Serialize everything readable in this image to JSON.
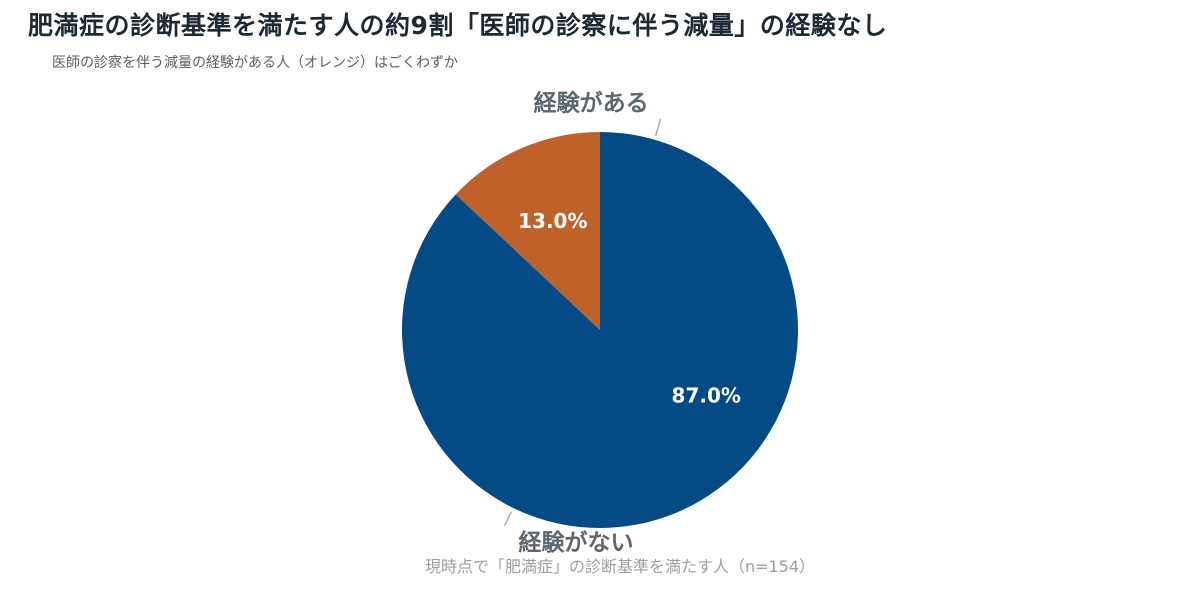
{
  "title": "肥満症の診断基準を満たす人の約9割「医師の診察に伴う減量」の経験なし",
  "subtitle": "医師の診察を伴う減量の経験がある人（オレンジ）はごくわずか",
  "chart_data": {
    "type": "pie",
    "categories": [
      "経験がある",
      "経験がない"
    ],
    "values": [
      13.0,
      87.0
    ],
    "value_labels": [
      "13.0%",
      "87.0%"
    ],
    "colors": [
      "#bf622a",
      "#044b85"
    ],
    "start_angle_deg": 0,
    "direction": "counterclockwise",
    "footnote": "現時点で「肥満症」の診断基準を満たす人（n=154）"
  }
}
